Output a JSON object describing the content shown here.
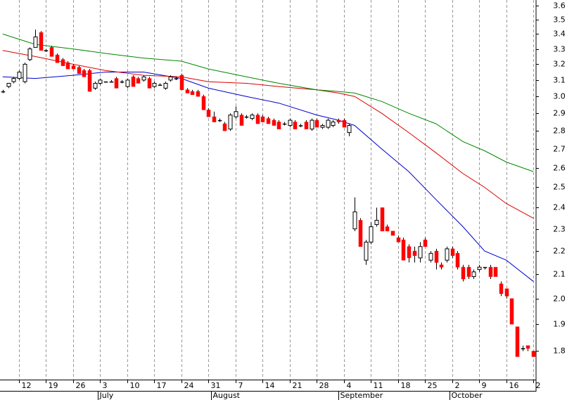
{
  "chart_data": {
    "type": "candlestick",
    "x": [
      0,
      1,
      2,
      3,
      4,
      5,
      6,
      7,
      8,
      9,
      10,
      11,
      12,
      13,
      14,
      15,
      16,
      17,
      18,
      19,
      20,
      21,
      22,
      23,
      24,
      25,
      26,
      27,
      28,
      29,
      30,
      31,
      32,
      33,
      34,
      35,
      36,
      37,
      38,
      39,
      40,
      41,
      42,
      43,
      44,
      45,
      46,
      47,
      48,
      49,
      50,
      51,
      52,
      53,
      54,
      55,
      56,
      57,
      58,
      59,
      60,
      61,
      62,
      63,
      64,
      65,
      66,
      67,
      68,
      69,
      70,
      71,
      72,
      73,
      74,
      75,
      76,
      77,
      78,
      79,
      80,
      81,
      82,
      83,
      84,
      85,
      86,
      87,
      88,
      89,
      90,
      91,
      92,
      93,
      94,
      95,
      96,
      97,
      98
    ],
    "open": [
      3.03,
      3.06,
      3.09,
      3.11,
      3.09,
      3.23,
      3.31,
      3.41,
      3.29,
      3.31,
      3.26,
      3.23,
      3.21,
      3.19,
      3.18,
      3.16,
      3.16,
      3.05,
      3.08,
      3.09,
      3.09,
      3.11,
      3.09,
      3.06,
      3.12,
      3.11,
      3.1,
      3.11,
      3.06,
      3.07,
      3.05,
      3.1,
      3.11,
      3.13,
      3.04,
      3.03,
      3.03,
      3.0,
      2.92,
      2.88,
      2.86,
      2.84,
      2.81,
      2.88,
      2.89,
      2.88,
      2.87,
      2.89,
      2.88,
      2.87,
      2.86,
      2.85,
      2.84,
      2.83,
      2.85,
      2.83,
      2.85,
      2.81,
      2.86,
      2.82,
      2.82,
      2.83,
      2.86,
      2.86,
      2.79,
      2.3,
      2.34,
      2.16,
      2.24,
      2.32,
      2.4,
      2.31,
      2.29,
      2.26,
      2.25,
      2.22,
      2.2,
      2.17,
      2.25,
      2.16,
      2.2,
      2.14,
      2.16,
      2.21,
      2.19,
      2.13,
      2.13,
      2.09,
      2.12,
      2.13,
      2.13,
      2.13,
      2.06,
      2.04,
      2.0,
      1.89,
      1.81,
      1.82,
      1.8
    ],
    "high": [
      3.04,
      3.08,
      3.12,
      3.16,
      3.21,
      3.31,
      3.43,
      3.42,
      3.3,
      3.32,
      3.27,
      3.24,
      3.22,
      3.2,
      3.19,
      3.17,
      3.17,
      3.09,
      3.11,
      3.09,
      3.1,
      3.12,
      3.1,
      3.11,
      3.13,
      3.12,
      3.13,
      3.12,
      3.09,
      3.08,
      3.09,
      3.13,
      3.12,
      3.14,
      3.05,
      3.04,
      3.04,
      3.01,
      2.93,
      2.91,
      2.87,
      2.85,
      2.9,
      2.94,
      2.9,
      2.89,
      2.9,
      2.9,
      2.89,
      2.88,
      2.87,
      2.86,
      2.85,
      2.87,
      2.86,
      2.84,
      2.86,
      2.87,
      2.87,
      2.84,
      2.87,
      2.86,
      2.87,
      2.87,
      2.84,
      2.45,
      2.35,
      2.25,
      2.33,
      2.4,
      2.4,
      2.32,
      2.29,
      2.27,
      2.26,
      2.23,
      2.22,
      2.24,
      2.26,
      2.2,
      2.21,
      2.15,
      2.22,
      2.22,
      2.2,
      2.14,
      2.14,
      2.12,
      2.14,
      2.13,
      2.14,
      2.13,
      2.07,
      2.04,
      2.0,
      1.89,
      1.82,
      1.82,
      1.8
    ],
    "low": [
      3.02,
      3.05,
      3.08,
      3.1,
      3.08,
      3.22,
      3.31,
      3.29,
      3.28,
      3.25,
      3.21,
      3.19,
      3.17,
      3.17,
      3.14,
      3.12,
      3.03,
      3.04,
      3.07,
      3.09,
      3.09,
      3.05,
      3.08,
      3.05,
      3.06,
      3.08,
      3.09,
      3.05,
      3.05,
      3.07,
      3.04,
      3.09,
      3.1,
      3.04,
      3.02,
      3.01,
      3.0,
      2.92,
      2.88,
      2.85,
      2.85,
      2.8,
      2.8,
      2.87,
      2.83,
      2.87,
      2.86,
      2.84,
      2.85,
      2.84,
      2.83,
      2.81,
      2.83,
      2.82,
      2.81,
      2.82,
      2.81,
      2.8,
      2.82,
      2.81,
      2.81,
      2.82,
      2.84,
      2.82,
      2.77,
      2.29,
      2.22,
      2.14,
      2.23,
      2.31,
      2.29,
      2.29,
      2.27,
      2.24,
      2.16,
      2.15,
      2.15,
      2.15,
      2.22,
      2.15,
      2.12,
      2.12,
      2.15,
      2.17,
      2.12,
      2.07,
      2.08,
      2.08,
      2.11,
      2.12,
      2.08,
      2.09,
      2.01,
      2.0,
      1.9,
      1.78,
      1.8,
      1.8,
      1.78
    ],
    "close": [
      3.03,
      3.08,
      3.11,
      3.15,
      3.2,
      3.3,
      3.38,
      3.29,
      3.29,
      3.25,
      3.21,
      3.19,
      3.17,
      3.17,
      3.14,
      3.12,
      3.03,
      3.08,
      3.1,
      3.09,
      3.09,
      3.05,
      3.09,
      3.1,
      3.06,
      3.08,
      3.12,
      3.05,
      3.08,
      3.07,
      3.08,
      3.12,
      3.11,
      3.04,
      3.02,
      3.01,
      3.0,
      2.92,
      2.88,
      2.85,
      2.86,
      2.8,
      2.89,
      2.91,
      2.83,
      2.88,
      2.89,
      2.84,
      2.85,
      2.84,
      2.83,
      2.81,
      2.84,
      2.86,
      2.81,
      2.83,
      2.81,
      2.86,
      2.82,
      2.83,
      2.86,
      2.85,
      2.85,
      2.82,
      2.83,
      2.38,
      2.22,
      2.24,
      2.31,
      2.34,
      2.29,
      2.29,
      2.27,
      2.24,
      2.16,
      2.17,
      2.18,
      2.22,
      2.22,
      2.19,
      2.15,
      2.13,
      2.21,
      2.18,
      2.13,
      2.08,
      2.09,
      2.11,
      2.13,
      2.13,
      2.09,
      2.09,
      2.02,
      2.01,
      1.9,
      1.78,
      1.81,
      1.81,
      1.78
    ],
    "up_color": "#ffffff",
    "down_color": "#ff0000",
    "series": [
      {
        "color": "#0000cc",
        "x": [
          0,
          6,
          13,
          19,
          26,
          33,
          38,
          45,
          51,
          58,
          62,
          65,
          70,
          75,
          80,
          85,
          89,
          93,
          98
        ],
        "values": [
          3.12,
          3.11,
          3.13,
          3.15,
          3.15,
          3.11,
          3.05,
          3.0,
          2.96,
          2.89,
          2.86,
          2.83,
          2.7,
          2.58,
          2.44,
          2.31,
          2.2,
          2.16,
          2.07
        ]
      },
      {
        "color": "#dd0000",
        "x": [
          0,
          6,
          13,
          19,
          26,
          33,
          38,
          45,
          51,
          58,
          62,
          65,
          70,
          75,
          80,
          85,
          89,
          93,
          98
        ],
        "values": [
          3.29,
          3.25,
          3.2,
          3.16,
          3.13,
          3.12,
          3.09,
          3.08,
          3.06,
          3.04,
          3.02,
          3.0,
          2.9,
          2.79,
          2.68,
          2.57,
          2.5,
          2.42,
          2.35
        ]
      },
      {
        "color": "#008800",
        "x": [
          0,
          6,
          13,
          19,
          26,
          33,
          38,
          45,
          51,
          58,
          62,
          65,
          70,
          75,
          80,
          85,
          89,
          93,
          98
        ],
        "values": [
          3.4,
          3.33,
          3.3,
          3.27,
          3.24,
          3.22,
          3.17,
          3.12,
          3.08,
          3.04,
          3.03,
          3.02,
          2.97,
          2.9,
          2.84,
          2.74,
          2.69,
          2.63,
          2.58
        ]
      }
    ],
    "xlim": [
      -0.5,
      98.5
    ],
    "ylim": [
      1.7,
      3.64
    ],
    "log_y": true,
    "grid": "x",
    "yticks": [
      1.8,
      1.9,
      {
        "value": 2,
        "label": "2.0"
      },
      2.1,
      2.2,
      2.3,
      2.4,
      2.5,
      2.6,
      2.7,
      2.8,
      2.9,
      {
        "value": 3,
        "label": "3.0"
      },
      3.1,
      3.2,
      3.3,
      3.4,
      3.5,
      3.6
    ],
    "xticks": [
      {
        "value": 3,
        "label": "12"
      },
      {
        "value": 8,
        "label": "19"
      },
      {
        "value": 13,
        "label": "26"
      },
      {
        "value": 18,
        "label": "3"
      },
      {
        "value": 23,
        "label": "10"
      },
      {
        "value": 28,
        "label": "17"
      },
      {
        "value": 33,
        "label": "24"
      },
      {
        "value": 38,
        "label": "31"
      },
      {
        "value": 43,
        "label": "7"
      },
      {
        "value": 48,
        "label": "14"
      },
      {
        "value": 53,
        "label": "21"
      },
      {
        "value": 58,
        "label": "28"
      },
      {
        "value": 63,
        "label": "4"
      },
      {
        "value": 68,
        "label": "11"
      },
      {
        "value": 73,
        "label": "18"
      },
      {
        "value": 78,
        "label": "25"
      },
      {
        "value": 83,
        "label": "2"
      },
      {
        "value": 88,
        "label": "9"
      },
      {
        "value": 93,
        "label": "16"
      },
      {
        "value": 98,
        "label": "2"
      }
    ],
    "month_ticks": [
      {
        "value": 17.5,
        "label": "July"
      },
      {
        "value": 38.5,
        "label": "August"
      },
      {
        "value": 62,
        "label": "September"
      },
      {
        "value": 82.5,
        "label": "October"
      }
    ]
  }
}
